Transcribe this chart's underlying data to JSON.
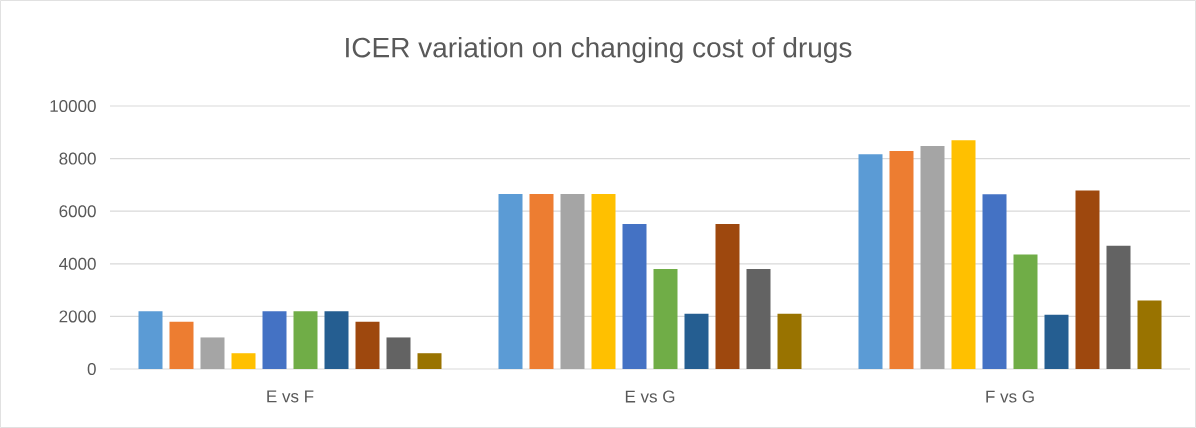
{
  "chart_data": {
    "type": "bar",
    "title": "ICER variation on changing cost of drugs",
    "categories": [
      "E vs F",
      "E vs G",
      "F vs G"
    ],
    "series": [
      {
        "color": "#5b9bd5",
        "values": [
          2200,
          6650,
          8170
        ]
      },
      {
        "color": "#ed7d31",
        "values": [
          1800,
          6650,
          8290
        ]
      },
      {
        "color": "#a5a5a5",
        "values": [
          1200,
          6650,
          8480
        ]
      },
      {
        "color": "#ffc000",
        "values": [
          600,
          6650,
          8700
        ]
      },
      {
        "color": "#4472c4",
        "values": [
          2200,
          5510,
          6640
        ]
      },
      {
        "color": "#70ad47",
        "values": [
          2200,
          3800,
          4350
        ]
      },
      {
        "color": "#255e91",
        "values": [
          2200,
          2100,
          2060
        ]
      },
      {
        "color": "#9e480e",
        "values": [
          1800,
          5510,
          6790
        ]
      },
      {
        "color": "#636363",
        "values": [
          1200,
          3800,
          4690
        ]
      },
      {
        "color": "#997300",
        "values": [
          600,
          2100,
          2600
        ]
      }
    ],
    "ylim": [
      0,
      10000
    ],
    "yticks": [
      0,
      2000,
      4000,
      6000,
      8000,
      10000
    ],
    "grid": "y"
  }
}
